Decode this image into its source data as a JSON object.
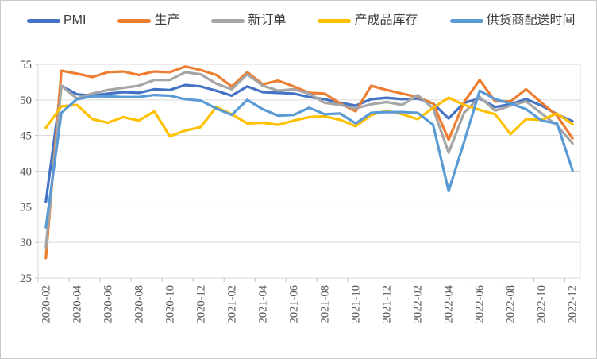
{
  "chart_data": {
    "type": "line",
    "title": "",
    "xlabel": "",
    "ylabel": "",
    "x": [
      "2020-02",
      "2020-03",
      "2020-04",
      "2020-05",
      "2020-06",
      "2020-07",
      "2020-08",
      "2020-09",
      "2020-10",
      "2020-11",
      "2020-12",
      "2021-01",
      "2021-02",
      "2021-03",
      "2021-04",
      "2021-05",
      "2021-06",
      "2021-07",
      "2021-08",
      "2021-09",
      "2021-10",
      "2021-11",
      "2021-12",
      "2022-01",
      "2022-02",
      "2022-03",
      "2022-04",
      "2022-05",
      "2022-06",
      "2022-07",
      "2022-08",
      "2022-09",
      "2022-10",
      "2022-11",
      "2022-12"
    ],
    "xtick_labels": [
      "2020-02",
      "2020-04",
      "2020-06",
      "2020-08",
      "2020-10",
      "2020-12",
      "2021-02",
      "2021-04",
      "2021-06",
      "2021-08",
      "2021-10",
      "2021-12",
      "2022-02",
      "2022-04",
      "2022-06",
      "2022-08",
      "2022-10",
      "2022-12"
    ],
    "xtick_every": 2,
    "ylim": [
      25,
      55
    ],
    "ytick_step": 5,
    "yticks": [
      25,
      30,
      35,
      40,
      45,
      50,
      55
    ],
    "grid": true,
    "legend_position": "top",
    "series": [
      {
        "key": "pmi",
        "name": "PMI",
        "color": "#4472C4",
        "values": [
          35.7,
          52.0,
          50.8,
          50.6,
          50.9,
          51.1,
          51.0,
          51.5,
          51.4,
          52.1,
          51.9,
          51.3,
          50.6,
          51.9,
          51.1,
          51.0,
          50.9,
          50.4,
          50.1,
          49.6,
          49.2,
          50.1,
          50.3,
          50.1,
          50.2,
          49.5,
          47.4,
          49.6,
          50.2,
          49.0,
          49.4,
          50.1,
          49.2,
          48.0,
          47.0
        ]
      },
      {
        "key": "production",
        "name": "生产",
        "color": "#ED7D31",
        "values": [
          27.8,
          54.1,
          53.7,
          53.2,
          53.9,
          54.0,
          53.5,
          54.0,
          53.9,
          54.7,
          54.2,
          53.5,
          51.9,
          53.9,
          52.2,
          52.7,
          51.9,
          51.0,
          50.9,
          49.5,
          48.4,
          52.0,
          51.4,
          50.9,
          50.4,
          49.5,
          44.4,
          49.7,
          52.8,
          49.8,
          49.8,
          51.5,
          49.6,
          47.8,
          44.6
        ]
      },
      {
        "key": "new-orders",
        "name": "新订单",
        "color": "#A5A5A5",
        "values": [
          29.3,
          52.0,
          50.2,
          50.9,
          51.4,
          51.7,
          52.0,
          52.8,
          52.8,
          53.9,
          53.6,
          52.3,
          51.5,
          53.6,
          52.0,
          51.3,
          51.5,
          50.9,
          49.6,
          49.3,
          48.8,
          49.4,
          49.7,
          49.3,
          50.7,
          48.8,
          42.6,
          48.2,
          50.4,
          48.5,
          49.2,
          49.8,
          48.1,
          46.4,
          43.9
        ]
      },
      {
        "key": "finished-goods-inventory",
        "name": "产成品库存",
        "color": "#FFC000",
        "values": [
          46.1,
          49.1,
          49.3,
          47.3,
          46.8,
          47.6,
          47.1,
          48.4,
          44.9,
          45.7,
          46.2,
          49.0,
          48.0,
          46.7,
          46.8,
          46.5,
          47.1,
          47.6,
          47.7,
          47.2,
          46.3,
          47.9,
          48.5,
          48.0,
          47.3,
          48.9,
          50.3,
          49.3,
          48.6,
          48.0,
          45.2,
          47.3,
          47.2,
          48.1,
          46.6
        ]
      },
      {
        "key": "supplier-delivery-time",
        "name": "供货商配送时间",
        "color": "#5B9BD5",
        "values": [
          32.1,
          48.2,
          50.1,
          50.5,
          50.5,
          50.4,
          50.4,
          50.7,
          50.6,
          50.1,
          49.9,
          48.8,
          47.9,
          50.0,
          48.7,
          47.8,
          47.9,
          48.9,
          48.0,
          48.1,
          46.7,
          48.2,
          48.3,
          48.3,
          48.2,
          46.5,
          37.2,
          44.1,
          51.3,
          50.1,
          49.5,
          48.7,
          47.1,
          46.7,
          40.1
        ]
      }
    ],
    "colors": {
      "grid": "#D9D9D9",
      "axis": "#BFBFBF",
      "tick_label": "#595959",
      "frame_border": "#C9C9C9"
    }
  }
}
